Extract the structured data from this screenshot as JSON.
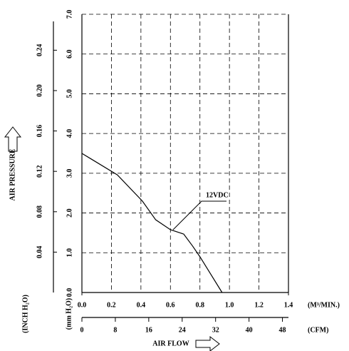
{
  "chart_data": {
    "type": "line",
    "x_label": "AIR FLOW",
    "y_label": "AIR PRESSURE",
    "x_unit": "(M³/MIN.)",
    "x2_unit": "(CFM)",
    "y_unit": "(mm H₂O)",
    "y2_unit": "(INCH H₂O)",
    "x": [
      0,
      0.24,
      0.41,
      0.5,
      0.6,
      0.69,
      0.75,
      0.8,
      0.95
    ],
    "series": [
      {
        "name": "12VDC",
        "color": "#000000",
        "values": [
          3.5,
          2.96,
          2.3,
          1.83,
          1.58,
          1.47,
          1.17,
          0.9,
          0
        ]
      }
    ],
    "xlim": [
      0,
      1.4
    ],
    "xticks": [
      {
        "value": 0,
        "label": "0.0"
      },
      0.2,
      0.4,
      0.6,
      0.8,
      {
        "value": 1,
        "label": "1.0"
      },
      1.2,
      1.4
    ],
    "x2lim": [
      0,
      49.44
    ],
    "x2ticks": [
      0,
      8,
      16,
      24,
      32,
      40,
      48
    ],
    "ylim": [
      0,
      7
    ],
    "yticks": [
      {
        "value": 0,
        "label": "0.0"
      },
      {
        "value": 1,
        "label": "1.0"
      },
      {
        "value": 2,
        "label": "2.0"
      },
      {
        "value": 3,
        "label": "3.0"
      },
      {
        "value": 4,
        "label": "4.0"
      },
      {
        "value": 5,
        "label": "5.0"
      },
      {
        "value": 6,
        "label": "6.0"
      },
      {
        "value": 7,
        "label": "7.0"
      }
    ],
    "y2lim": [
      0,
      0.2756
    ],
    "y2ticks": [
      0.04,
      0.08,
      0.12,
      0.16,
      {
        "value": 0.2,
        "label": "0.20"
      },
      0.24
    ],
    "grid": true
  }
}
